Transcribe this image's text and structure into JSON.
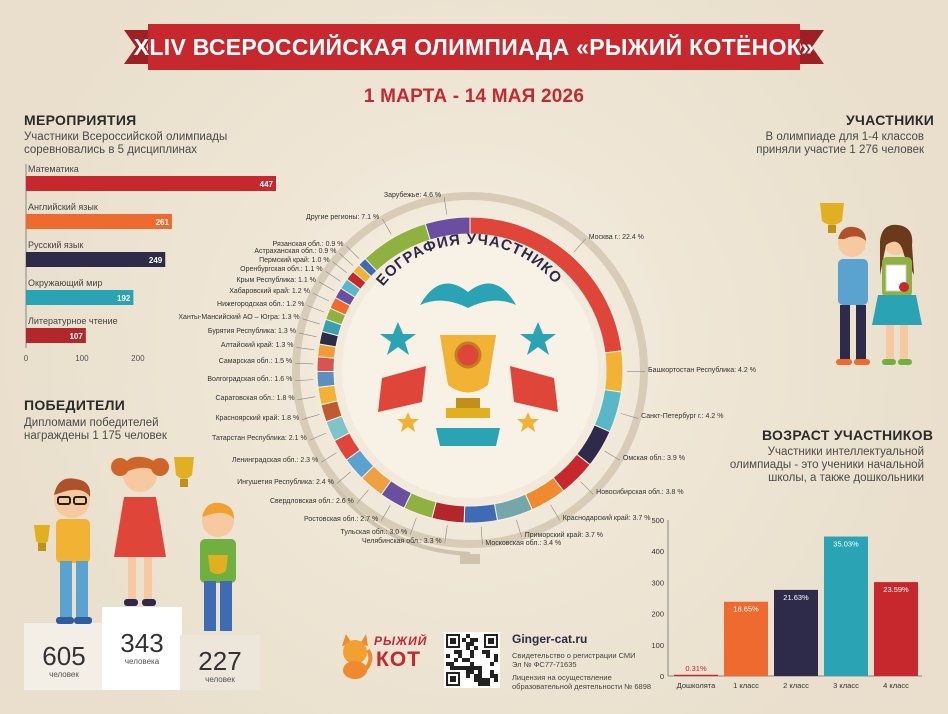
{
  "header": {
    "title": "XLIV ВСЕРОССИЙСКАЯ ОЛИМПИАДА «РЫЖИЙ КОТЁНОК»",
    "dates": "1 МАРТА - 14 МАЯ 2026"
  },
  "events": {
    "title": "МЕРОПРИЯТИЯ",
    "text_line1": "Участники Всероссийской олимпиады",
    "text_line2": "соревновались в 5 дисциплинах"
  },
  "winners": {
    "title": "ПОБЕДИТЕЛИ",
    "text_line1": "Дипломами победителей",
    "text_line2": "награждены 1 175 человек",
    "podium": [
      {
        "count": "605",
        "unit": "человек"
      },
      {
        "count": "343",
        "unit": "человека"
      },
      {
        "count": "227",
        "unit": "человек"
      }
    ]
  },
  "participants": {
    "title": "УЧАСТНИКИ",
    "text_line1": "В олимпиаде для 1-4 классов",
    "text_line2": "приняли участие 1 276 человек"
  },
  "age": {
    "title": "ВОЗРАСТ УЧАСТНИКОВ",
    "text_line1": "Участники интеллектуальной",
    "text_line2": "олимпиады - это ученики начальной",
    "text_line3": "школы, а также дошкольники"
  },
  "geo": {
    "title": "ГЕОГРАФИЯ УЧАСТНИКОВ"
  },
  "footer": {
    "logo_word1": "РЫЖИЙ",
    "logo_word2": "КОТ",
    "site": "Ginger-cat.ru",
    "reg_line1": "Свидетельство о регистрации СМИ",
    "reg_line2": "Эл № ФС77-71635",
    "lic_line1": "Лицензия на осуществление",
    "lic_line2": "образовательной деятельности № 6898"
  },
  "colors": {
    "red": "#c7282d",
    "orange": "#ef6a2e",
    "navy": "#2d2a4a",
    "teal": "#2aa3b5",
    "darkred": "#b3262b"
  },
  "chart_data": [
    {
      "type": "bar",
      "orientation": "horizontal",
      "categories": [
        "Математика",
        "Английский язык",
        "Русский язык",
        "Окружающий мир",
        "Литературное чтение"
      ],
      "values": [
        447,
        261,
        249,
        192,
        107
      ],
      "colors": [
        "#c7282d",
        "#ef6a2e",
        "#2d2a4a",
        "#2aa3b5",
        "#b3262b"
      ],
      "xticks": [
        "0",
        "100",
        "200"
      ],
      "xlim": [
        0,
        447
      ]
    },
    {
      "type": "pie",
      "title": "ГЕОГРАФИЯ УЧАСТНИКОВ",
      "slices": [
        {
          "label": "Москва г.: 22.4 %",
          "value": 22.4,
          "color": "#e0453a"
        },
        {
          "label": "Башкортостан Республика: 4.2 %",
          "value": 4.2,
          "color": "#f2b233"
        },
        {
          "label": "Санкт-Петербург г.: 4.2 %",
          "value": 4.2,
          "color": "#58b8c7"
        },
        {
          "label": "Омская обл.: 3.9 %",
          "value": 3.9,
          "color": "#2d2a4a"
        },
        {
          "label": "Новосибирская обл.: 3.8 %",
          "value": 3.8,
          "color": "#c7282d"
        },
        {
          "label": "Краснодарский край: 3.7 %",
          "value": 3.7,
          "color": "#ef8a2e"
        },
        {
          "label": "Приморский край: 3.7 %",
          "value": 3.7,
          "color": "#74a7a9"
        },
        {
          "label": "Московская обл.: 3.4 %",
          "value": 3.4,
          "color": "#3f6bb5"
        },
        {
          "label": "Челябинская обл.: 3.3 %",
          "value": 3.3,
          "color": "#b3262b"
        },
        {
          "label": "Тульская обл.: 3.0 %",
          "value": 3.0,
          "color": "#8fb140"
        },
        {
          "label": "Ростовская обл.: 2.7 %",
          "value": 2.7,
          "color": "#6a4fa0"
        },
        {
          "label": "Свердловская обл.: 2.6 %",
          "value": 2.6,
          "color": "#f0a040"
        },
        {
          "label": "Ингушетия Республика: 2.4 %",
          "value": 2.4,
          "color": "#5aa3d0"
        },
        {
          "label": "Ленинградская обл.: 2.3 %",
          "value": 2.3,
          "color": "#e0453a"
        },
        {
          "label": "Татарстан Республика: 2.1 %",
          "value": 2.1,
          "color": "#7fc4c8"
        },
        {
          "label": "Красноярский край: 1.8 %",
          "value": 1.8,
          "color": "#c05a30"
        },
        {
          "label": "Саратовская обл.: 1.8 %",
          "value": 1.8,
          "color": "#f2b233"
        },
        {
          "label": "Волгоградская обл.: 1.6 %",
          "value": 1.6,
          "color": "#5a8fc0"
        },
        {
          "label": "Самарская обл.: 1.5 %",
          "value": 1.5,
          "color": "#d9534f"
        },
        {
          "label": "Алтайский край: 1.3 %",
          "value": 1.3,
          "color": "#f29c38"
        },
        {
          "label": "Бурятия Республика: 1.3 %",
          "value": 1.3,
          "color": "#2d2a4a"
        },
        {
          "label": "Ханты-Мансийский АО – Югра: 1.3 %",
          "value": 1.3,
          "color": "#3aa0b0"
        },
        {
          "label": "Нижегородская обл.: 1.2 %",
          "value": 1.2,
          "color": "#8fb140"
        },
        {
          "label": "Хабаровский край: 1.2 %",
          "value": 1.2,
          "color": "#ef6a2e"
        },
        {
          "label": "Крым Республика: 1.1 %",
          "value": 1.1,
          "color": "#6a4fa0"
        },
        {
          "label": "Оренбургская обл.: 1.1 %",
          "value": 1.1,
          "color": "#58b8c7"
        },
        {
          "label": "Пермский край: 1.0 %",
          "value": 1.0,
          "color": "#c7282d"
        },
        {
          "label": "Астраханская обл.: 0.9 %",
          "value": 0.9,
          "color": "#f2b233"
        },
        {
          "label": "Рязанская обл.: 0.9 %",
          "value": 0.9,
          "color": "#3f6bb5"
        },
        {
          "label": "Другие регионы: 7.1 %",
          "value": 7.1,
          "color": "#8fb140"
        },
        {
          "label": "Зарубежье: 4.6 %",
          "value": 4.6,
          "color": "#6a4fa0"
        }
      ]
    },
    {
      "type": "bar",
      "categories": [
        "Дошколята",
        "1 класс",
        "2 класс",
        "3 класс",
        "4 класс"
      ],
      "values": [
        0.31,
        18.65,
        21.63,
        35.03,
        23.59
      ],
      "counts": [
        4,
        238,
        276,
        447,
        301
      ],
      "labels": [
        "0.31%",
        "18.65%",
        "21.63%",
        "35.03%",
        "23.59%"
      ],
      "colors": [
        "#c7282d",
        "#ef6a2e",
        "#2d2a4a",
        "#2aa3b5",
        "#c7282d"
      ],
      "yticks": [
        "0",
        "100",
        "200",
        "300",
        "400",
        "500"
      ],
      "ylim": [
        0,
        500
      ]
    }
  ]
}
